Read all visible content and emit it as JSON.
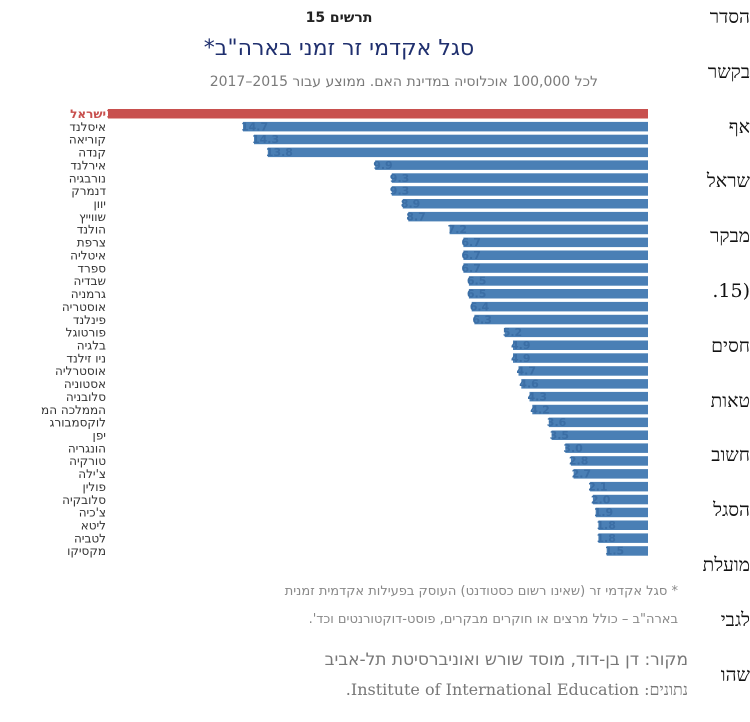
{
  "chart_data": {
    "type": "bar",
    "orientation": "horizontal",
    "issue_label": "תרשים 15",
    "title": "סגל אקדמי זר זמני בארה\"ב*",
    "subtitle": "לכל 100,000 אוכלוסיה במדינת האם. ממוצע עבור 2015–2017",
    "categories": [
      "ישראל",
      "איסלנד",
      "קוריאה",
      "קנדה",
      "אירלנד",
      "נורבגיה",
      "דנמרק",
      "יוון",
      "שווייץ",
      "הולנד",
      "צרפת",
      "איטליה",
      "ספרד",
      "שבדיה",
      "גרמניה",
      "אוסטריה",
      "פינלנד",
      "פורטוגל",
      "בלגיה",
      "ניו זילנד",
      "אוסטרליה",
      "אסטוניה",
      "סלובניה",
      "הממלכה המ",
      "לוקסמבורג",
      "יפן",
      "הונגריה",
      "טורקיה",
      "צ'ילה",
      "פולין",
      "סלובקיה",
      "צ'כיה",
      "ליטא",
      "לטביה",
      "מקסיקו"
    ],
    "values": [
      19.6,
      14.7,
      14.3,
      13.8,
      9.9,
      9.3,
      9.3,
      8.9,
      8.7,
      7.2,
      6.7,
      6.7,
      6.7,
      6.5,
      6.5,
      6.4,
      6.3,
      5.2,
      4.9,
      4.9,
      4.7,
      4.6,
      4.3,
      4.2,
      3.6,
      3.5,
      3.0,
      2.8,
      2.7,
      2.1,
      2.0,
      1.9,
      1.8,
      1.8,
      1.5
    ],
    "value_labels": [
      "19.6",
      "14.7",
      "14.3",
      "13.8",
      "9.9",
      "9.3",
      "9.3",
      "8.9",
      "8.7",
      "7.2",
      "6.7",
      "6.7",
      "6.7",
      "6.5",
      "6.5",
      "6.4",
      "6.3",
      "5.2",
      "4.9",
      "4.9",
      "4.7",
      "4.6",
      "4.3",
      "4.2",
      "3.6",
      "3.5",
      "3.0",
      "2.8",
      "2.7",
      "2.1",
      "2.0",
      "1.9",
      "1.8",
      "1.8",
      "1.5"
    ],
    "highlight_index": 0,
    "colors": {
      "default": "#4a7fb5",
      "highlight": "#c8504e",
      "value_label": "#3b6ea5"
    },
    "grid": false,
    "legend": "none"
  },
  "notes": {
    "footnote_line1": "* סגל אקדמי זר (שאינו רשום כסטודנט) העוסק בפעילות אקדמית זמנית",
    "footnote_line2": "בארה\"ב – כולל מרצים או חוקרים מבקרים, פוסט-דוקטורנטים וכד'.",
    "source": "מקור:  דן בן-דוד, מוסד שורש ואוניברסיטת תל-אביב",
    "data_source": "נתונים: Institute of International Education."
  },
  "side_text": [
    "הסדר",
    "בקשר",
    "אף",
    "שראל",
    "מבקר",
    "(15.",
    "חסים",
    "טאות",
    "חשוב",
    "הסגל",
    "מועלת",
    "לגבי",
    "שהו"
  ],
  "colors": {
    "title": "#1f2f6e",
    "subtitle": "#7a7a7a",
    "footnote": "#888888"
  }
}
